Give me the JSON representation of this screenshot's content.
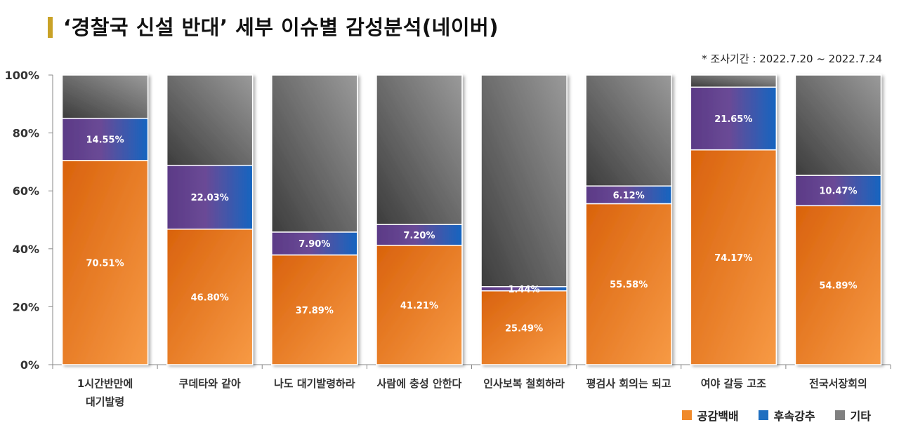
{
  "title": "‘경찰국 신설 반대’ 세부 이슈별 감성분석(네이버)",
  "period": "* 조사기간 : 2022.7.20 ~ 2022.7.24",
  "colors": {
    "series": [
      "#f08a2a",
      "#1f6fc0",
      "#808080"
    ],
    "title_accent": "#c9a227"
  },
  "chart_data": {
    "type": "bar",
    "stacked": true,
    "categories": [
      "1시간반만에\n대기발령",
      "쿠데타와 같아",
      "나도 대기발령하라",
      "사람에 충성 안한다",
      "인사보복 철회하라",
      "평검사 회의는 되고",
      "여야 갈등 고조",
      "전국서장회의"
    ],
    "series": [
      {
        "name": "공감백배",
        "values": [
          70.51,
          46.8,
          37.89,
          41.21,
          25.49,
          55.58,
          74.17,
          54.89
        ]
      },
      {
        "name": "후속강추",
        "values": [
          14.55,
          22.03,
          7.9,
          7.2,
          1.44,
          6.12,
          21.65,
          10.47
        ]
      },
      {
        "name": "기타",
        "values": [
          14.94,
          31.17,
          54.21,
          51.59,
          73.07,
          38.3,
          4.18,
          34.64
        ]
      }
    ],
    "data_labels": [
      [
        "70.51%",
        "46.80%",
        "37.89%",
        "41.21%",
        "25.49%",
        "55.58%",
        "74.17%",
        "54.89%"
      ],
      [
        "14.55%",
        "22.03%",
        "7.90%",
        "7.20%",
        "1.44%",
        "6.12%",
        "21.65%",
        "10.47%"
      ]
    ],
    "y_ticks": [
      "0%",
      "20%",
      "40%",
      "60%",
      "80%",
      "100%"
    ],
    "ylim": [
      0,
      100
    ],
    "legend_position": "bottom-right",
    "grid": false
  }
}
